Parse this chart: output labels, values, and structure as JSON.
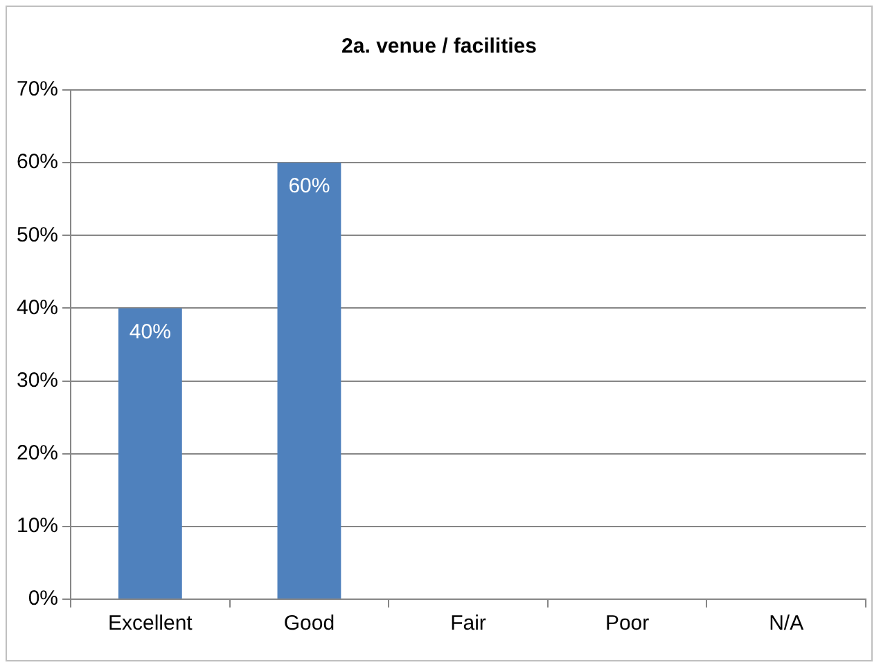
{
  "chart_data": {
    "type": "bar",
    "title": "2a. venue / facilities",
    "categories": [
      "Excellent",
      "Good",
      "Fair",
      "Poor",
      "N/A"
    ],
    "values": [
      40,
      60,
      0,
      0,
      0
    ],
    "value_labels": [
      "40%",
      "60%",
      null,
      null,
      null
    ],
    "color": "#4f81bd",
    "ylim": [
      0,
      70
    ],
    "yticks": [
      {
        "value": 0,
        "label": "0%"
      },
      {
        "value": 10,
        "label": "10%"
      },
      {
        "value": 20,
        "label": "20%"
      },
      {
        "value": 30,
        "label": "30%"
      },
      {
        "value": 40,
        "label": "40%"
      },
      {
        "value": 50,
        "label": "50%"
      },
      {
        "value": 60,
        "label": "60%"
      },
      {
        "value": 70,
        "label": "70%"
      }
    ],
    "grid": "y"
  }
}
